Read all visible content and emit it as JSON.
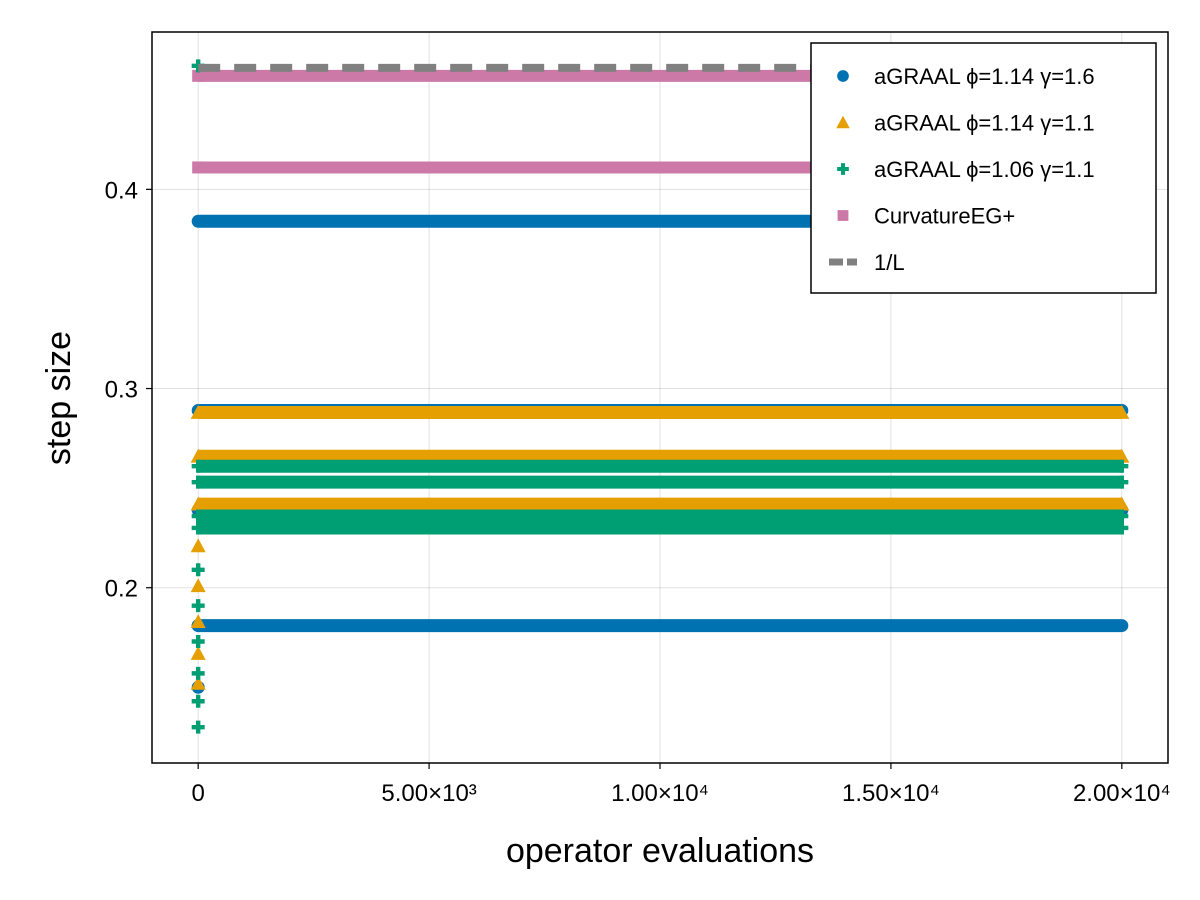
{
  "chart_data": {
    "type": "scatter",
    "xlabel": "operator evaluations",
    "ylabel": "step size",
    "xlim": [
      -1000,
      21000
    ],
    "ylim": [
      0.112,
      0.479
    ],
    "grid": true,
    "legend_position": "top-right",
    "x_ticks": [
      {
        "value": 0,
        "label": "0"
      },
      {
        "value": 5000,
        "label": "5.00×10³"
      },
      {
        "value": 10000,
        "label": "1.00×10⁴"
      },
      {
        "value": 15000,
        "label": "1.50×10⁴"
      },
      {
        "value": 20000,
        "label": "2.00×10⁴"
      }
    ],
    "y_ticks": [
      {
        "value": 0.2,
        "label": "0.2"
      },
      {
        "value": 0.3,
        "label": "0.3"
      },
      {
        "value": 0.4,
        "label": "0.4"
      }
    ],
    "series": [
      {
        "name": "aGRAAL ϕ=1.14 γ=1.6",
        "marker": "circle",
        "color": "#0072b2",
        "bands": [
          {
            "y": 0.384,
            "x_start": 0,
            "x_end": 15000
          },
          {
            "y": 0.289,
            "x_start": 0,
            "x_end": 20000
          },
          {
            "y": 0.239,
            "x_start": 0,
            "x_end": 20000
          },
          {
            "y": 0.181,
            "x_start": 0,
            "x_end": 20000
          }
        ],
        "points": [
          {
            "x": 0,
            "y": 0.15
          },
          {
            "x": 0,
            "y": 0.181
          }
        ]
      },
      {
        "name": "aGRAAL ϕ=1.14 γ=1.1",
        "marker": "triangle",
        "color": "#e69f00",
        "bands": [
          {
            "y": 0.288,
            "x_start": 0,
            "x_end": 20000
          },
          {
            "y": 0.266,
            "x_start": 0,
            "x_end": 20000
          },
          {
            "y": 0.242,
            "x_start": 0,
            "x_end": 20000
          }
        ],
        "points": [
          {
            "x": 0,
            "y": 0.221
          },
          {
            "x": 0,
            "y": 0.201
          },
          {
            "x": 0,
            "y": 0.183
          },
          {
            "x": 0,
            "y": 0.167
          },
          {
            "x": 0,
            "y": 0.152
          }
        ]
      },
      {
        "name": "aGRAAL ϕ=1.06 γ=1.1",
        "marker": "plus",
        "color": "#009e73",
        "bands": [
          {
            "y": 0.261,
            "x_start": 0,
            "x_end": 20000
          },
          {
            "y": 0.253,
            "x_start": 0,
            "x_end": 20000
          },
          {
            "y": 0.236,
            "x_start": 0,
            "x_end": 20000
          },
          {
            "y": 0.23,
            "x_start": 0,
            "x_end": 20000
          }
        ],
        "points": [
          {
            "x": 0,
            "y": 0.462
          },
          {
            "x": 0,
            "y": 0.209
          },
          {
            "x": 0,
            "y": 0.191
          },
          {
            "x": 0,
            "y": 0.173
          },
          {
            "x": 0,
            "y": 0.157
          },
          {
            "x": 0,
            "y": 0.143
          },
          {
            "x": 0,
            "y": 0.13
          }
        ]
      },
      {
        "name": "CurvatureEG+",
        "marker": "square",
        "color": "#cc79a7",
        "bands": [
          {
            "y": 0.457,
            "x_start": 0,
            "x_end": 14000
          },
          {
            "y": 0.411,
            "x_start": 0,
            "x_end": 14000
          }
        ],
        "points": []
      },
      {
        "name": "1/L",
        "marker": "dashed-line",
        "color": "#808080",
        "line_y": 0.461,
        "line_x": [
          0,
          14000
        ]
      }
    ]
  }
}
